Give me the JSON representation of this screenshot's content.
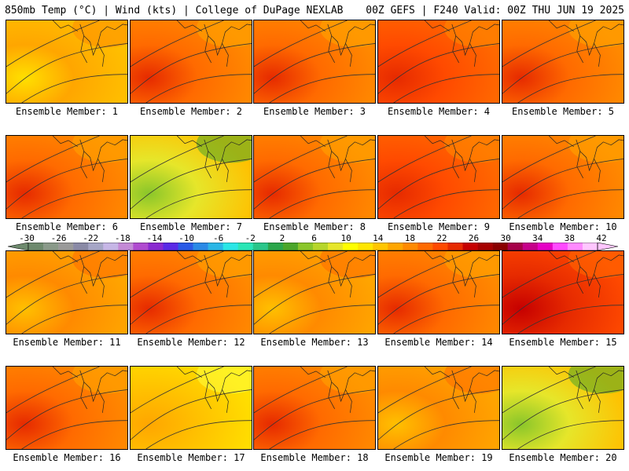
{
  "header": {
    "left_title": "850mb Temp (°C) | Wind (kts) | College of DuPage NEXLAB",
    "right_title": "00Z GEFS | F240 Valid: 00Z THU JUN 19 2025"
  },
  "members": [
    {
      "label": "Ensemble Member: 1",
      "scheme": "orange-yellow"
    },
    {
      "label": "Ensemble Member: 2",
      "scheme": "hot-west"
    },
    {
      "label": "Ensemble Member: 3",
      "scheme": "hot-west"
    },
    {
      "label": "Ensemble Member: 4",
      "scheme": "hot"
    },
    {
      "label": "Ensemble Member: 5",
      "scheme": "hot-west"
    },
    {
      "label": "Ensemble Member: 6",
      "scheme": "hot-west"
    },
    {
      "label": "Ensemble Member: 7",
      "scheme": "cool-green"
    },
    {
      "label": "Ensemble Member: 8",
      "scheme": "hot-west"
    },
    {
      "label": "Ensemble Member: 9",
      "scheme": "hot"
    },
    {
      "label": "Ensemble Member: 10",
      "scheme": "hot-west"
    },
    {
      "label": "Ensemble Member: 11",
      "scheme": "orange"
    },
    {
      "label": "Ensemble Member: 12",
      "scheme": "hot-west"
    },
    {
      "label": "Ensemble Member: 13",
      "scheme": "orange"
    },
    {
      "label": "Ensemble Member: 14",
      "scheme": "hot-west"
    },
    {
      "label": "Ensemble Member: 15",
      "scheme": "very-hot"
    },
    {
      "label": "Ensemble Member: 16",
      "scheme": "hot-west"
    },
    {
      "label": "Ensemble Member: 17",
      "scheme": "yellow"
    },
    {
      "label": "Ensemble Member: 18",
      "scheme": "hot-west"
    },
    {
      "label": "Ensemble Member: 19",
      "scheme": "orange"
    },
    {
      "label": "Ensemble Member: 20",
      "scheme": "cool-green"
    }
  ],
  "colorbar": {
    "ticks": [
      "-30",
      "-26",
      "-22",
      "-18",
      "-14",
      "-10",
      "-6",
      "-2",
      "2",
      "6",
      "10",
      "14",
      "18",
      "22",
      "26",
      "30",
      "34",
      "38",
      "42"
    ],
    "colors": [
      "#6e8a6e",
      "#8a9a8a",
      "#9a9a9a",
      "#8a8aa6",
      "#a6a6c6",
      "#c6b6e6",
      "#c48ad6",
      "#b04ad0",
      "#8a2ad0",
      "#5a2ae6",
      "#2a5ae6",
      "#2a8ae6",
      "#2ab6e6",
      "#2ae6e6",
      "#2ae6b6",
      "#2ac68a",
      "#2aa64a",
      "#4aa62a",
      "#8ac62a",
      "#b6d62a",
      "#e6e62a",
      "#ffff00",
      "#ffe600",
      "#ffc600",
      "#ffa600",
      "#ff8a00",
      "#ff6a00",
      "#ff4a00",
      "#e62a00",
      "#c60000",
      "#a60000",
      "#8a0000",
      "#a6004a",
      "#c6008a",
      "#e600c6",
      "#ff4aff",
      "#ff8aff",
      "#ffc6ff"
    ]
  }
}
